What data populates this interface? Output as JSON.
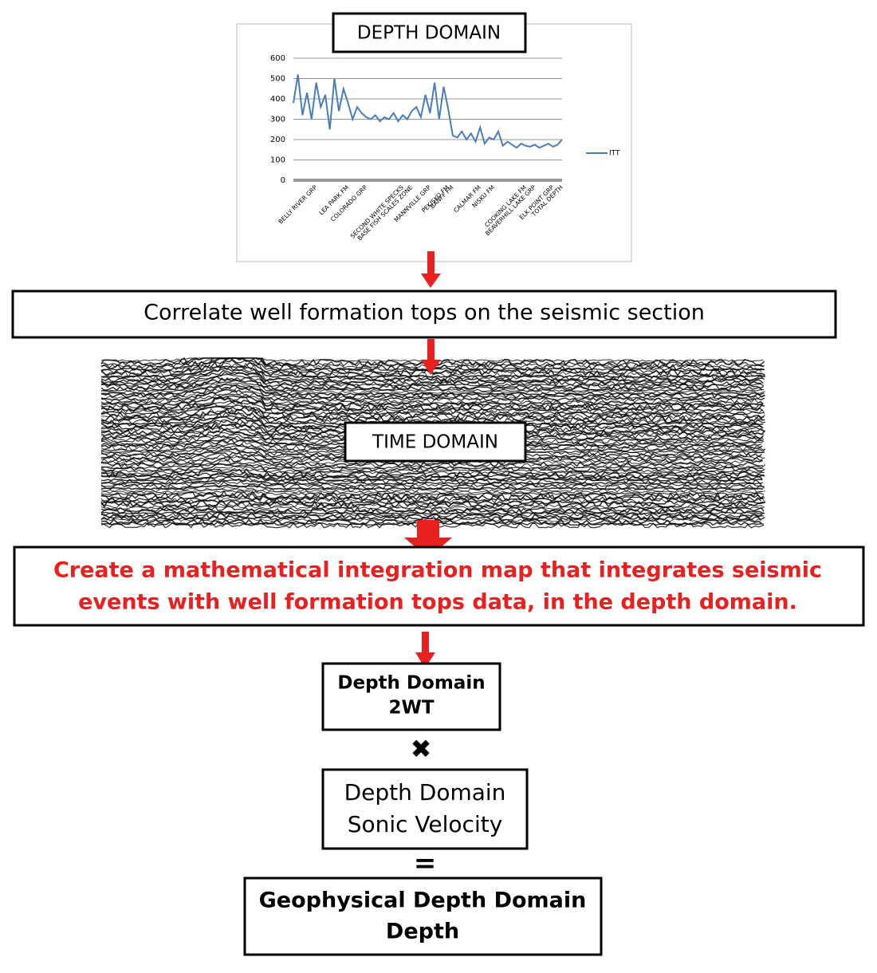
{
  "chart_data": {
    "type": "line",
    "categories": [
      null,
      null,
      null,
      null,
      null,
      "BELLY RIVER GRP",
      null,
      null,
      null,
      null,
      null,
      null,
      "LEA PARK FM",
      null,
      null,
      null,
      "COLORADO GRP",
      null,
      null,
      null,
      null,
      null,
      null,
      null,
      "SECOND WHITE SPECKS",
      null,
      "BASE FISH SCALES ZONE",
      null,
      null,
      null,
      "MANNVILLE GRP",
      null,
      null,
      null,
      "PEKISKO FM",
      "BANFF FM",
      null,
      null,
      null,
      null,
      null,
      "CALMAR FM",
      null,
      null,
      "NISKU FM",
      null,
      null,
      null,
      null,
      null,
      null,
      "COOKING LAKE FM",
      null,
      "BEAVERHILL LAKE GRP",
      null,
      null,
      null,
      "ELK POINT GRP",
      null,
      "TOTAL DEPTH"
    ],
    "series": [
      {
        "name": "ITT",
        "color": "#4a7ebb",
        "values": [
          380,
          520,
          320,
          430,
          300,
          480,
          360,
          420,
          250,
          500,
          340,
          450,
          380,
          300,
          360,
          330,
          310,
          300,
          320,
          290,
          310,
          300,
          330,
          290,
          320,
          300,
          340,
          360,
          310,
          420,
          330,
          480,
          300,
          460,
          350,
          220,
          210,
          240,
          200,
          230,
          190,
          260,
          180,
          210,
          200,
          240,
          170,
          190,
          175,
          160,
          180,
          170,
          165,
          175,
          160,
          170,
          180,
          165,
          175,
          200
        ]
      }
    ],
    "ylim": [
      0,
      600
    ],
    "yticks": [
      0,
      100,
      200,
      300,
      400,
      500,
      600
    ],
    "grid": true,
    "legend": "right"
  },
  "diagram": {
    "depth_label": "DEPTH DOMAIN",
    "correlate": "Correlate well formation tops on the seismic section",
    "time_label": "TIME DOMAIN",
    "integration": [
      "Create a mathematical integration map that integrates  seismic",
      "events with well formation tops data, in the depth domain."
    ],
    "twt": [
      "Depth Domain",
      "2WT"
    ],
    "times": "✖",
    "velocity": [
      "Depth Domain",
      "Sonic Velocity"
    ],
    "equals": "=",
    "result": [
      "Geophysical Depth Domain",
      "Depth"
    ]
  }
}
